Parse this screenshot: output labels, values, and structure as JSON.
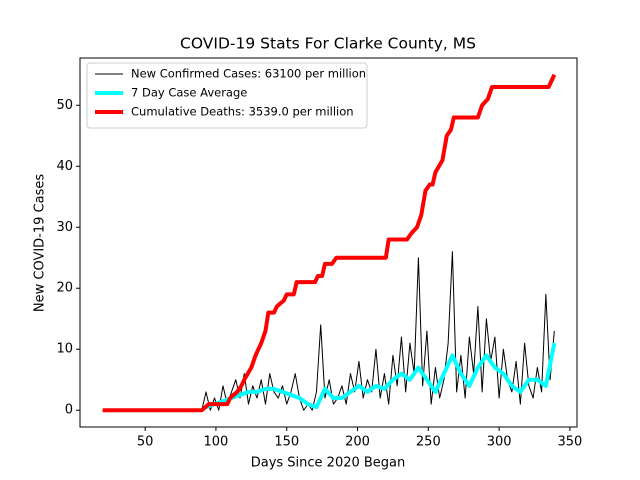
{
  "chart_data": {
    "type": "line",
    "title": "COVID-19 Stats For Clarke County, MS",
    "xlabel": "Days Since 2020 Began",
    "ylabel": "New COVID-19 Cases",
    "xlim": [
      4,
      355
    ],
    "xticks": [
      50,
      100,
      150,
      200,
      250,
      300,
      350
    ],
    "ylim": [
      -2.75,
      57.75
    ],
    "yticks": [
      0,
      10,
      20,
      30,
      40,
      50
    ],
    "legend": "upper left",
    "series": [
      {
        "name": "New Confirmed Cases: 63100 per million",
        "color": "#000000",
        "width": 1,
        "x": [
          90,
          93,
          96,
          99,
          102,
          105,
          108,
          111,
          114,
          117,
          120,
          123,
          126,
          129,
          132,
          135,
          138,
          141,
          144,
          147,
          150,
          153,
          156,
          159,
          162,
          165,
          168,
          171,
          174,
          177,
          180,
          183,
          186,
          189,
          192,
          195,
          198,
          201,
          204,
          207,
          210,
          213,
          216,
          219,
          222,
          225,
          228,
          231,
          234,
          237,
          240,
          243,
          246,
          249,
          252,
          255,
          258,
          261,
          264,
          267,
          270,
          273,
          276,
          279,
          282,
          285,
          288,
          291,
          294,
          297,
          300,
          303,
          306,
          309,
          312,
          315,
          318,
          321,
          324,
          327,
          330,
          333,
          336,
          339
        ],
        "values": [
          0,
          3,
          0,
          2,
          0,
          4,
          1,
          3,
          5,
          2,
          6,
          1,
          4,
          2,
          5,
          1,
          6,
          3,
          2,
          4,
          1,
          3,
          6,
          2,
          0,
          1,
          0,
          3,
          14,
          2,
          5,
          1,
          2,
          4,
          1,
          6,
          3,
          8,
          2,
          5,
          3,
          10,
          2,
          6,
          1,
          9,
          4,
          12,
          3,
          11,
          6,
          25,
          4,
          13,
          1,
          7,
          2,
          5,
          11,
          26,
          3,
          9,
          2,
          12,
          6,
          17,
          3,
          15,
          8,
          12,
          2,
          10,
          5,
          3,
          8,
          1,
          11,
          4,
          2,
          7,
          3,
          19,
          5,
          13
        ]
      },
      {
        "name": "7 Day Case Average",
        "color": "#00ffff",
        "width": 4,
        "x": [
          93,
          99,
          105,
          111,
          117,
          123,
          129,
          135,
          141,
          147,
          153,
          159,
          165,
          171,
          177,
          183,
          189,
          195,
          201,
          207,
          213,
          219,
          225,
          231,
          237,
          243,
          249,
          255,
          261,
          267,
          273,
          279,
          285,
          291,
          297,
          303,
          309,
          315,
          321,
          327,
          333,
          339
        ],
        "values": [
          0.5,
          1,
          1.5,
          2,
          2.5,
          3,
          3,
          3.5,
          3.5,
          3,
          2.5,
          2,
          1,
          0.5,
          3.5,
          2,
          2,
          3,
          4,
          3,
          4,
          3.5,
          5,
          6,
          5,
          7,
          5,
          3,
          6,
          9,
          6,
          4,
          7,
          9,
          7,
          6,
          4,
          3,
          5,
          5,
          4,
          11
        ]
      },
      {
        "name": "Cumulative Deaths: 3539.0 per million",
        "color": "#ff0000",
        "width": 4,
        "x": [
          20,
          90,
          95,
          100,
          108,
          110,
          115,
          118,
          120,
          125,
          128,
          132,
          135,
          137,
          141,
          143,
          148,
          150,
          155,
          157,
          170,
          172,
          175,
          177,
          182,
          185,
          220,
          222,
          235,
          238,
          242,
          245,
          248,
          251,
          253,
          255,
          260,
          263,
          266,
          268,
          285,
          288,
          292,
          295,
          335,
          337,
          339
        ],
        "values": [
          0,
          0,
          1,
          1,
          1,
          2,
          3,
          4,
          5,
          7,
          9,
          11,
          13,
          16,
          16,
          17,
          18,
          19,
          19,
          21,
          21,
          22,
          22,
          24,
          24,
          25,
          25,
          28,
          28,
          29,
          30,
          32,
          36,
          37,
          37,
          39,
          41,
          45,
          46,
          48,
          48,
          50,
          51,
          53,
          53,
          54,
          55
        ]
      }
    ]
  }
}
